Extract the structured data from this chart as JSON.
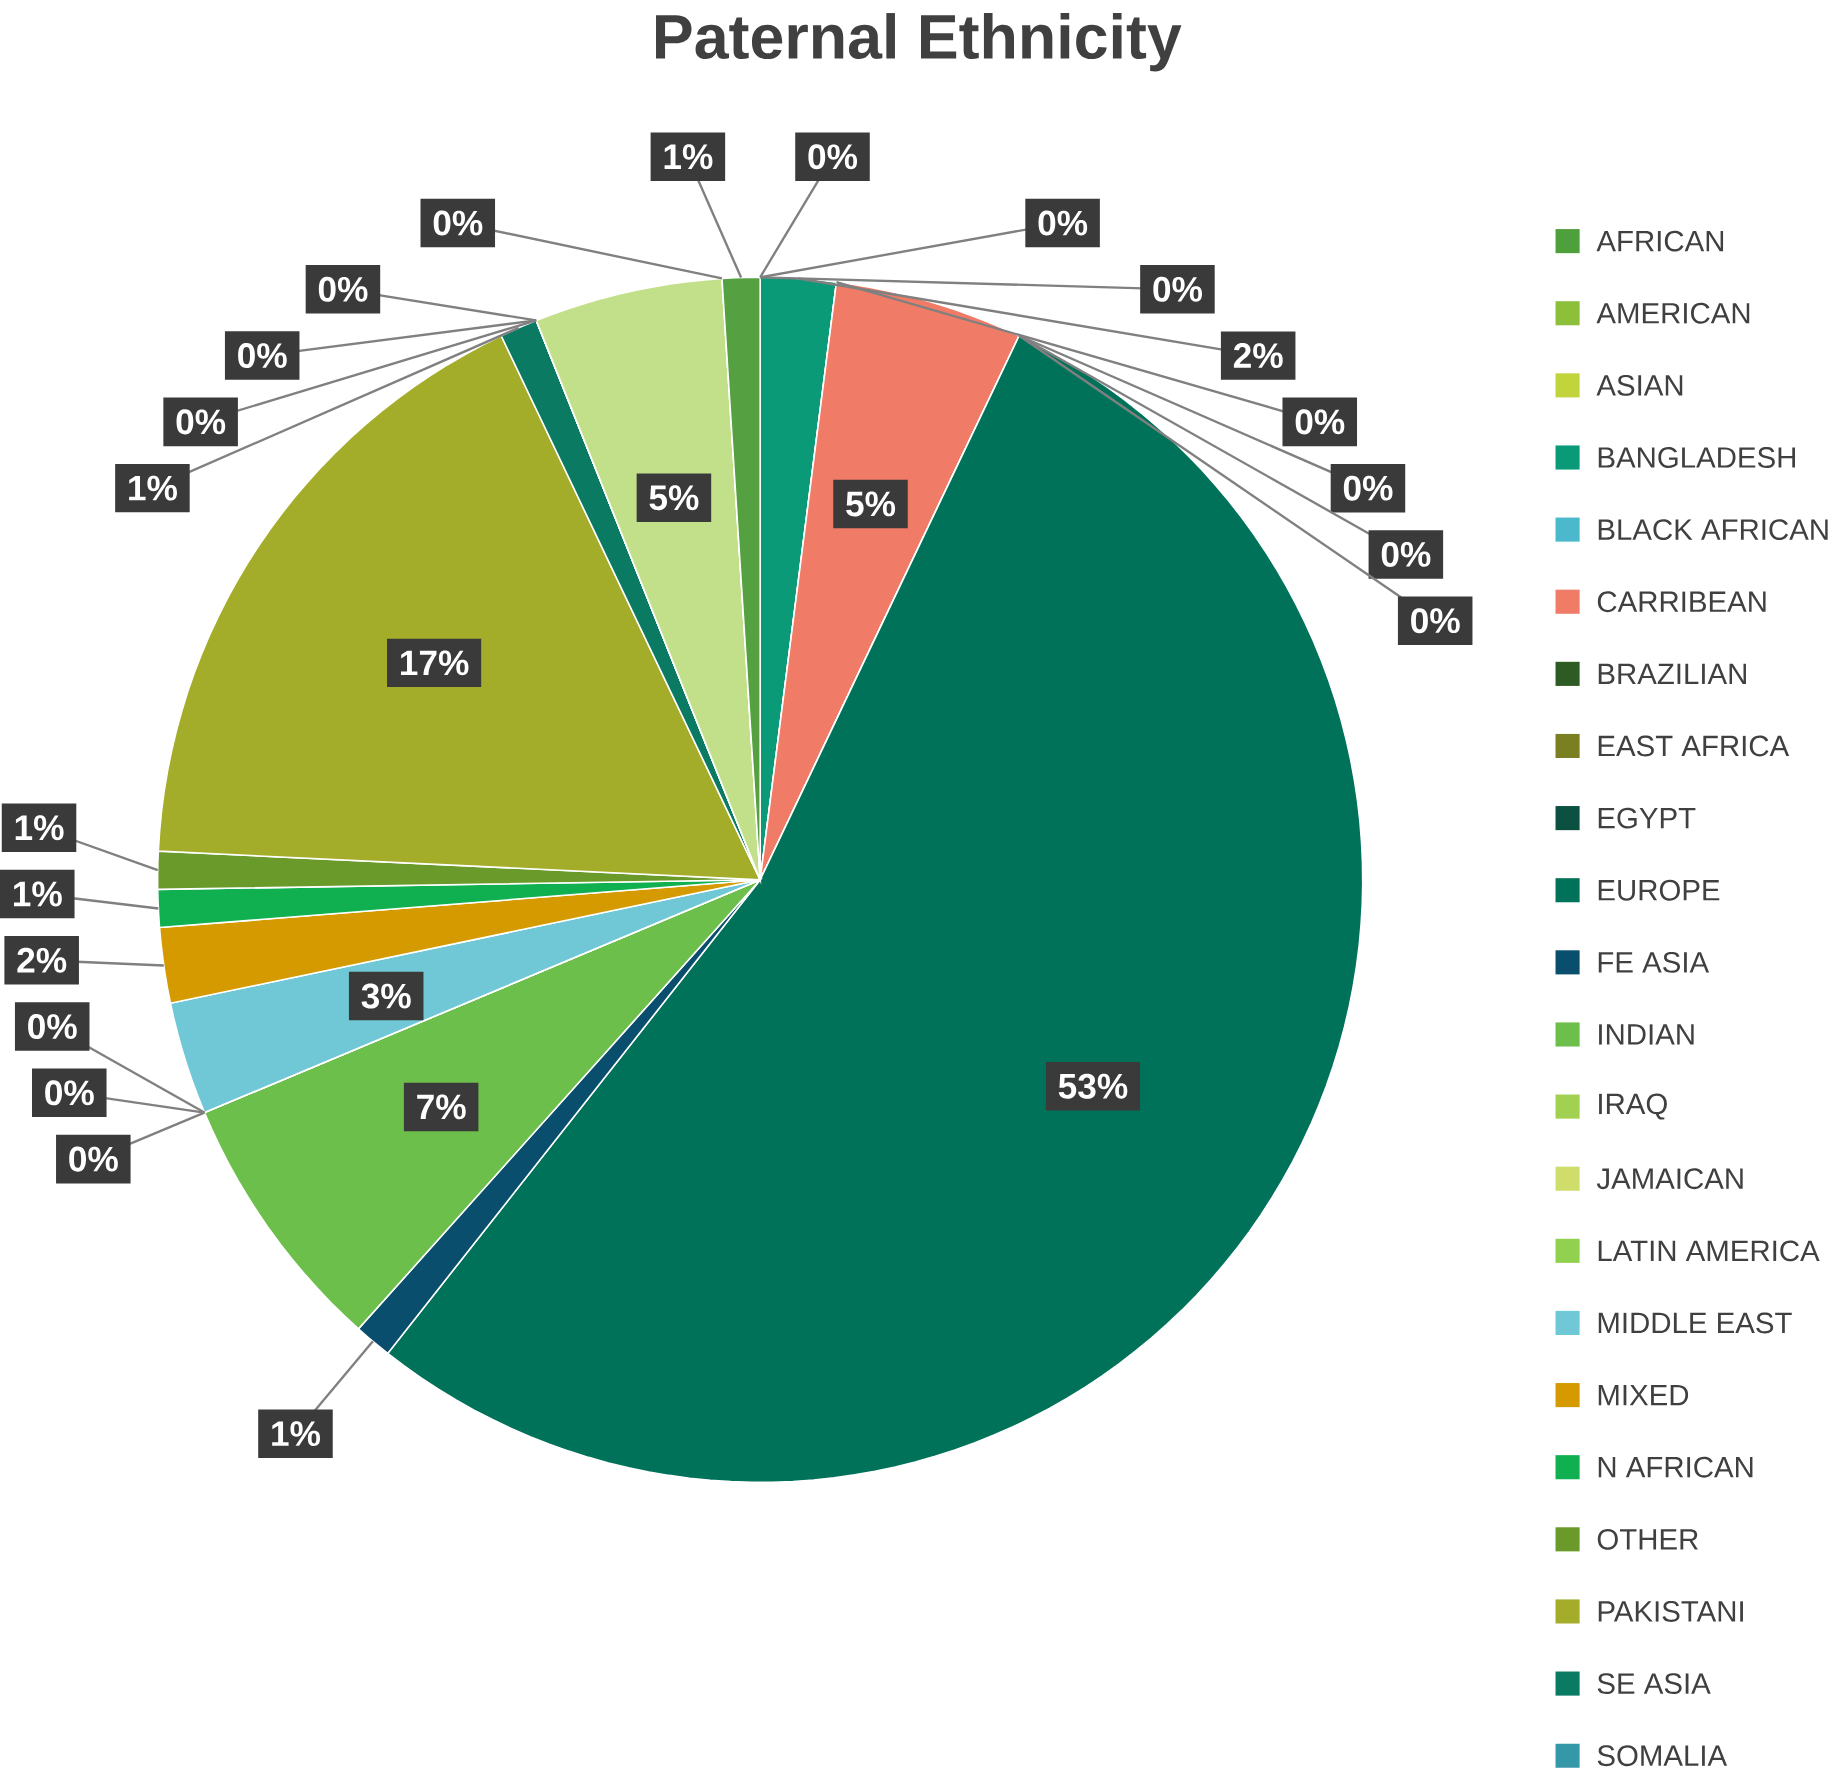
{
  "chart_data": {
    "type": "pie",
    "title": "Paternal Ethnicity",
    "categories": [
      "AFRICAN",
      "AMERICAN",
      "ASIAN",
      "BANGLADESH",
      "BLACK AFRICAN",
      "CARRIBEAN",
      "BRAZILIAN",
      "EAST AFRICA",
      "EGYPT",
      "EUROPE",
      "FE ASIA",
      "INDIAN",
      "IRAQ",
      "JAMAICAN",
      "LATIN AMERICA",
      "MIDDLE EAST",
      "MIXED",
      "N AFRICAN",
      "OTHER",
      "PAKISTANI",
      "SE ASIA",
      "SOMALIA",
      null,
      null,
      null,
      null,
      null
    ],
    "values": [
      0,
      0,
      0,
      2,
      0,
      5,
      0,
      0,
      0,
      53,
      1,
      7,
      0,
      0,
      0,
      3,
      2,
      1,
      1,
      17,
      1,
      0,
      0,
      0,
      5,
      0,
      1
    ],
    "value_labels": [
      "0%",
      "0%",
      "0%",
      "2%",
      "0%",
      "5%",
      "0%",
      "0%",
      "0%",
      "53%",
      "1%",
      "7%",
      "0%",
      "0%",
      "0%",
      "3%",
      "2%",
      "1%",
      "1%",
      "17%",
      "1%",
      "0%",
      "0%",
      "0%",
      "5%",
      "0%",
      "1%"
    ],
    "colors": [
      "#4ea03c",
      "#8cbf3a",
      "#c2d43c",
      "#0a9a78",
      "#4bb8cc",
      "#f07b66",
      "#2e5a23",
      "#7a7f22",
      "#0b5040",
      "#00725a",
      "#0a4e6e",
      "#6cbf4a",
      "#a2d050",
      "#cfdd6a",
      "#92d050",
      "#70c8d6",
      "#d49a00",
      "#10b050",
      "#6a9a2a",
      "#a3ad2a",
      "#0a7a62",
      "#3598a8",
      "#3a6a3a",
      "#5c9c4a",
      "#c2e08a",
      "#7a7a20",
      "#55a040"
    ],
    "legend": "right"
  }
}
